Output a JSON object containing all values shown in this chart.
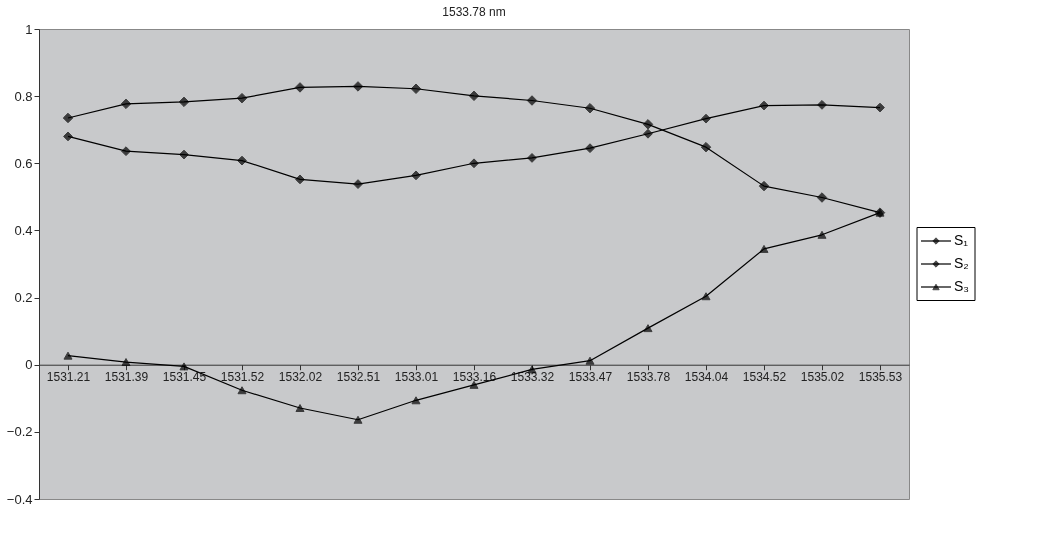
{
  "chart_data": {
    "type": "line",
    "title": "1533.78 nm",
    "categories": [
      "1531.21",
      "1531.39",
      "1531.45",
      "1531.52",
      "1532.02",
      "1532.51",
      "1533.01",
      "1533.16",
      "1533.32",
      "1533.47",
      "1533.78",
      "1534.04",
      "1534.52",
      "1535.02",
      "1535.53"
    ],
    "series": [
      {
        "name": "S₁",
        "color": "#000000",
        "marker": "diamond",
        "values": [
          0.735,
          0.777,
          0.783,
          0.794,
          0.826,
          0.829,
          0.822,
          0.801,
          0.787,
          0.764,
          0.716,
          0.648,
          0.532,
          0.498,
          0.453
        ]
      },
      {
        "name": "S₂",
        "color": "#000000",
        "marker": "diamond",
        "values": [
          0.68,
          0.636,
          0.626,
          0.608,
          0.552,
          0.538,
          0.564,
          0.6,
          0.616,
          0.645,
          0.688,
          0.733,
          0.772,
          0.774,
          0.766
        ]
      },
      {
        "name": "S₃",
        "color": "#000000",
        "marker": "triangle",
        "values": [
          0.027,
          0.008,
          -0.005,
          -0.076,
          -0.129,
          -0.164,
          -0.106,
          -0.06,
          -0.014,
          0.012,
          0.109,
          0.204,
          0.345,
          0.387,
          0.453
        ]
      }
    ],
    "ylim": [
      -0.4,
      1
    ],
    "yticks": [
      -0.4,
      -0.2,
      0,
      0.2,
      0.4,
      0.6,
      0.8,
      1
    ],
    "grid": false,
    "legend": "right",
    "line_style": "solid"
  }
}
